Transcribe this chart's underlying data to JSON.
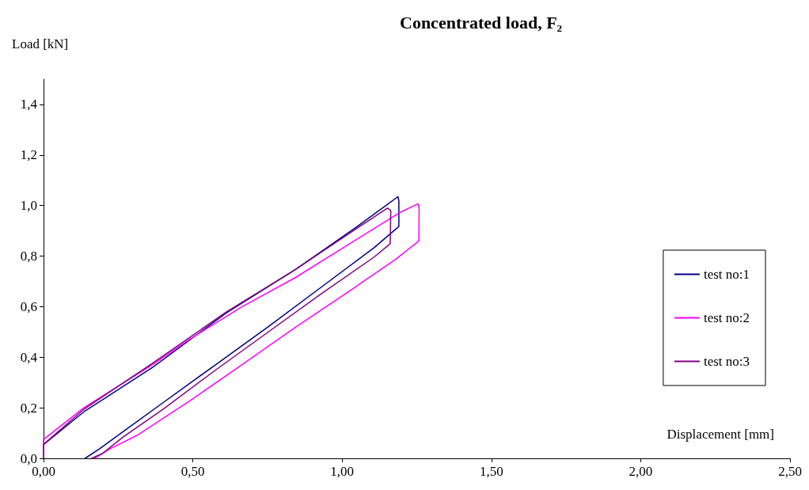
{
  "chart_data": {
    "type": "line",
    "title": "Concentrated load, F₂",
    "xlabel": "Displacement [mm]",
    "ylabel": "Load [kN]",
    "xlim": [
      0,
      2.5
    ],
    "xticks": [
      {
        "value": 0,
        "label": "0,00"
      },
      {
        "value": 0.5,
        "label": "0,50"
      },
      {
        "value": 1,
        "label": "1,00"
      },
      {
        "value": 1.5,
        "label": "1,50"
      },
      {
        "value": 2,
        "label": "2,00"
      },
      {
        "value": 2.5,
        "label": "2,50"
      }
    ],
    "ylim": [
      0,
      1.5
    ],
    "yticks": [
      {
        "value": 0,
        "label": "0,0"
      },
      {
        "value": 0.2,
        "label": "0,2"
      },
      {
        "value": 0.4,
        "label": "0,4"
      },
      {
        "value": 0.6,
        "label": "0,6"
      },
      {
        "value": 0.8,
        "label": "0,8"
      },
      {
        "value": 1,
        "label": "1,0"
      },
      {
        "value": 1.2,
        "label": "1,2"
      },
      {
        "value": 1.4,
        "label": "1,4"
      }
    ],
    "grid": false,
    "legend": "right",
    "marker": "none",
    "line_style": "solid",
    "series": [
      {
        "name": "test no:1",
        "color": "#000080",
        "x": [
          0,
          0,
          0.135,
          0.365,
          0.612,
          0.842,
          1.046,
          1.187,
          1.19,
          1.19,
          1.108,
          0.931,
          0.754,
          0.577,
          0.4,
          0.267,
          0.188,
          0.139
        ],
        "values": [
          0,
          0.054,
          0.184,
          0.36,
          0.575,
          0.746,
          0.913,
          1.035,
          1.02,
          0.917,
          0.834,
          0.678,
          0.522,
          0.371,
          0.22,
          0.106,
          0.038,
          0
        ]
      },
      {
        "name": "test no:2",
        "color": "#ff00ff",
        "x": [
          0,
          0,
          0.135,
          0.365,
          0.488,
          0.665,
          0.842,
          1.019,
          1.196,
          1.254,
          1.258,
          1.257,
          1.179,
          1.019,
          0.842,
          0.665,
          0.488,
          0.312,
          0.223,
          0.17
        ],
        "values": [
          0,
          0.075,
          0.2,
          0.371,
          0.47,
          0.6,
          0.714,
          0.844,
          0.974,
          1.007,
          0.99,
          0.86,
          0.787,
          0.657,
          0.517,
          0.371,
          0.226,
          0.09,
          0.038,
          0
        ]
      },
      {
        "name": "test no:3",
        "color": "#800080",
        "x": [
          0,
          0,
          0.135,
          0.365,
          0.612,
          0.842,
          1.019,
          1.152,
          1.163,
          1.161,
          1.108,
          0.931,
          0.754,
          0.577,
          0.4,
          0.267,
          0.196,
          0.161
        ],
        "values": [
          0,
          0.055,
          0.194,
          0.376,
          0.579,
          0.746,
          0.886,
          0.99,
          0.98,
          0.849,
          0.797,
          0.652,
          0.501,
          0.35,
          0.194,
          0.085,
          0.018,
          0
        ]
      }
    ]
  }
}
